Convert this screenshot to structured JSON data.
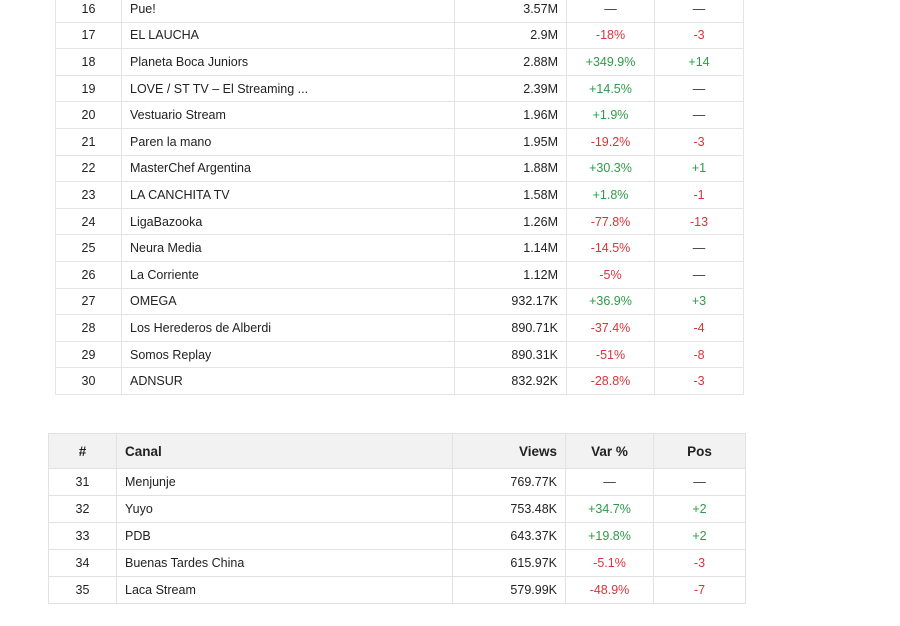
{
  "table_top": {
    "rows": [
      {
        "num": "16",
        "canal": "Pue!",
        "views": "3.57M",
        "var": "—",
        "var_kind": "neutral",
        "pos": "—",
        "pos_kind": "neutral"
      },
      {
        "num": "17",
        "canal": "EL LAUCHA",
        "views": "2.9M",
        "var": "-18%",
        "var_kind": "down",
        "pos": "-3",
        "pos_kind": "down"
      },
      {
        "num": "18",
        "canal": "Planeta Boca Juniors",
        "views": "2.88M",
        "var": "+349.9%",
        "var_kind": "up",
        "pos": "+14",
        "pos_kind": "up"
      },
      {
        "num": "19",
        "canal": "LOVE / ST TV – El Streaming ...",
        "views": "2.39M",
        "var": "+14.5%",
        "var_kind": "up",
        "pos": "—",
        "pos_kind": "neutral"
      },
      {
        "num": "20",
        "canal": "Vestuario Stream",
        "views": "1.96M",
        "var": "+1.9%",
        "var_kind": "up",
        "pos": "—",
        "pos_kind": "neutral"
      },
      {
        "num": "21",
        "canal": "Paren la mano",
        "views": "1.95M",
        "var": "-19.2%",
        "var_kind": "down",
        "pos": "-3",
        "pos_kind": "down"
      },
      {
        "num": "22",
        "canal": "MasterChef Argentina",
        "views": "1.88M",
        "var": "+30.3%",
        "var_kind": "up",
        "pos": "+1",
        "pos_kind": "up"
      },
      {
        "num": "23",
        "canal": "LA CANCHITA TV",
        "views": "1.58M",
        "var": "+1.8%",
        "var_kind": "up",
        "pos": "-1",
        "pos_kind": "down"
      },
      {
        "num": "24",
        "canal": "LigaBazooka",
        "views": "1.26M",
        "var": "-77.8%",
        "var_kind": "down",
        "pos": "-13",
        "pos_kind": "down"
      },
      {
        "num": "25",
        "canal": "Neura Media",
        "views": "1.14M",
        "var": "-14.5%",
        "var_kind": "down",
        "pos": "—",
        "pos_kind": "neutral"
      },
      {
        "num": "26",
        "canal": "La Corriente",
        "views": "1.12M",
        "var": "-5%",
        "var_kind": "down",
        "pos": "—",
        "pos_kind": "neutral"
      },
      {
        "num": "27",
        "canal": "OMEGA",
        "views": "932.17K",
        "var": "+36.9%",
        "var_kind": "up",
        "pos": "+3",
        "pos_kind": "up"
      },
      {
        "num": "28",
        "canal": "Los Herederos de Alberdi",
        "views": "890.71K",
        "var": "-37.4%",
        "var_kind": "down",
        "pos": "-4",
        "pos_kind": "down"
      },
      {
        "num": "29",
        "canal": "Somos Replay",
        "views": "890.31K",
        "var": "-51%",
        "var_kind": "down",
        "pos": "-8",
        "pos_kind": "down"
      },
      {
        "num": "30",
        "canal": "ADNSUR",
        "views": "832.92K",
        "var": "-28.8%",
        "var_kind": "down",
        "pos": "-3",
        "pos_kind": "down"
      }
    ]
  },
  "table_bottom": {
    "headers": {
      "num": "#",
      "canal": "Canal",
      "views": "Views",
      "var": "Var %",
      "pos": "Pos"
    },
    "rows": [
      {
        "num": "31",
        "canal": "Menjunje",
        "views": "769.77K",
        "var": "—",
        "var_kind": "neutral",
        "pos": "—",
        "pos_kind": "neutral"
      },
      {
        "num": "32",
        "canal": "Yuyo",
        "views": "753.48K",
        "var": "+34.7%",
        "var_kind": "up",
        "pos": "+2",
        "pos_kind": "up"
      },
      {
        "num": "33",
        "canal": "PDB",
        "views": "643.37K",
        "var": "+19.8%",
        "var_kind": "up",
        "pos": "+2",
        "pos_kind": "up"
      },
      {
        "num": "34",
        "canal": "Buenas Tardes China",
        "views": "615.97K",
        "var": "-5.1%",
        "var_kind": "down",
        "pos": "-3",
        "pos_kind": "down"
      },
      {
        "num": "35",
        "canal": "Laca Stream",
        "views": "579.99K",
        "var": "-48.9%",
        "var_kind": "down",
        "pos": "-7",
        "pos_kind": "down"
      }
    ]
  },
  "colors": {
    "up": "#2e9b48",
    "down": "#d9343a",
    "neutral": "#333333",
    "header_bg": "#f2f2f2",
    "border": "#e2e2e2"
  }
}
